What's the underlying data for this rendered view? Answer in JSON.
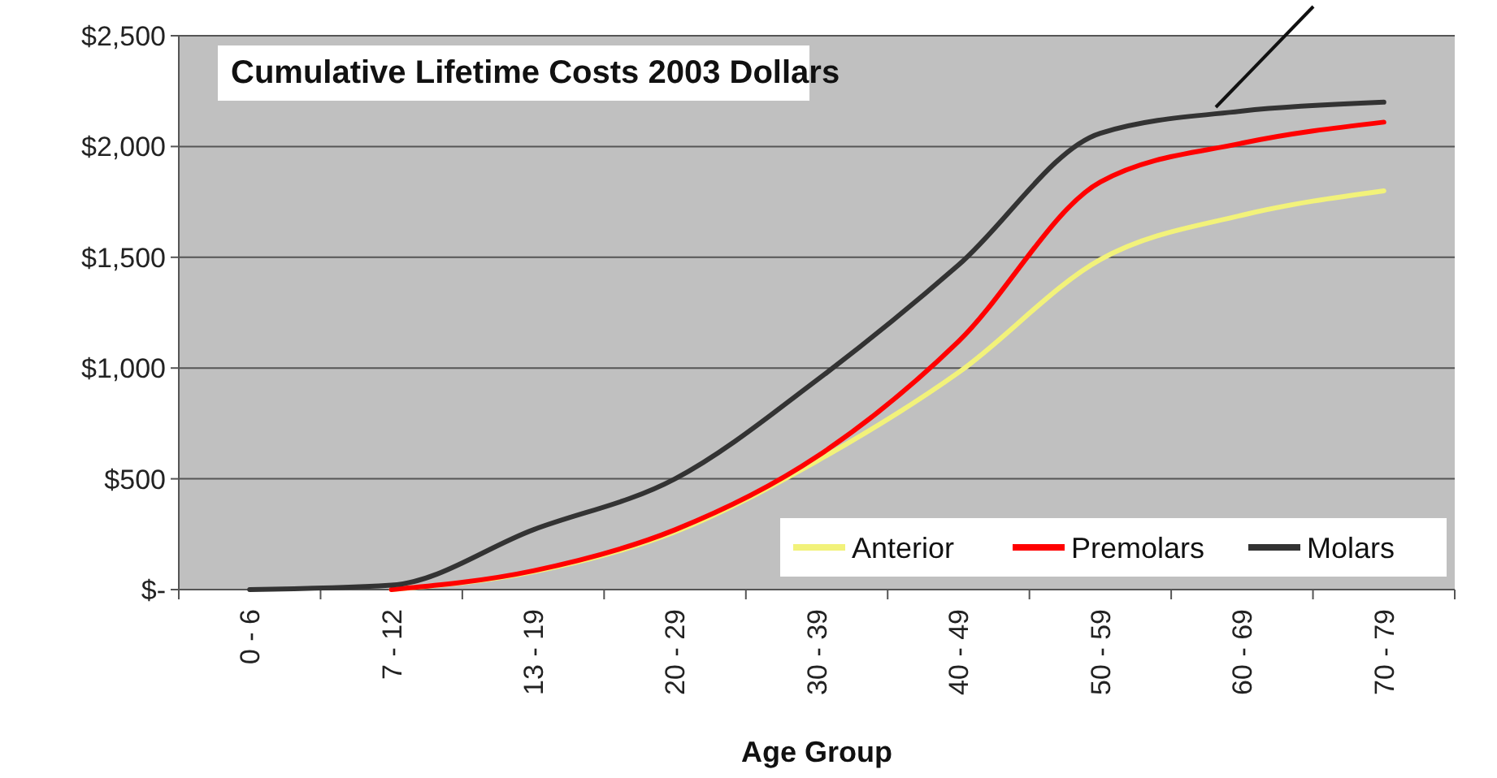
{
  "chart_data": {
    "type": "line",
    "title": "Cumulative Lifetime Costs 2003 Dollars",
    "xlabel": "Age Group",
    "categories": [
      "0 - 6",
      "7 - 12",
      "13 - 19",
      "20 - 29",
      "30 - 39",
      "40 - 49",
      "50 - 59",
      "60 - 69",
      "70 - 79"
    ],
    "series": [
      {
        "name": "Anterior",
        "color": "#f2f27a",
        "values": [
          null,
          0,
          80,
          260,
          580,
          980,
          1490,
          1690,
          1800
        ]
      },
      {
        "name": "Premolars",
        "color": "#ff0000",
        "values": [
          null,
          0,
          85,
          270,
          600,
          1120,
          1840,
          2015,
          2110
        ]
      },
      {
        "name": "Molars",
        "color": "#333333",
        "values": [
          0,
          20,
          270,
          500,
          945,
          1465,
          2060,
          2160,
          2200
        ]
      }
    ],
    "ylim": [
      0,
      2500
    ],
    "yticks": [
      {
        "value": 0,
        "label": "$-"
      },
      {
        "value": 500,
        "label": "$500"
      },
      {
        "value": 1000,
        "label": "$1,000"
      },
      {
        "value": 1500,
        "label": "$1,500"
      },
      {
        "value": 2000,
        "label": "$2,000"
      },
      {
        "value": 2500,
        "label": "$2,500"
      }
    ],
    "grid": "y",
    "legend": "bottom right",
    "marker": "none",
    "line_style": "solid"
  }
}
